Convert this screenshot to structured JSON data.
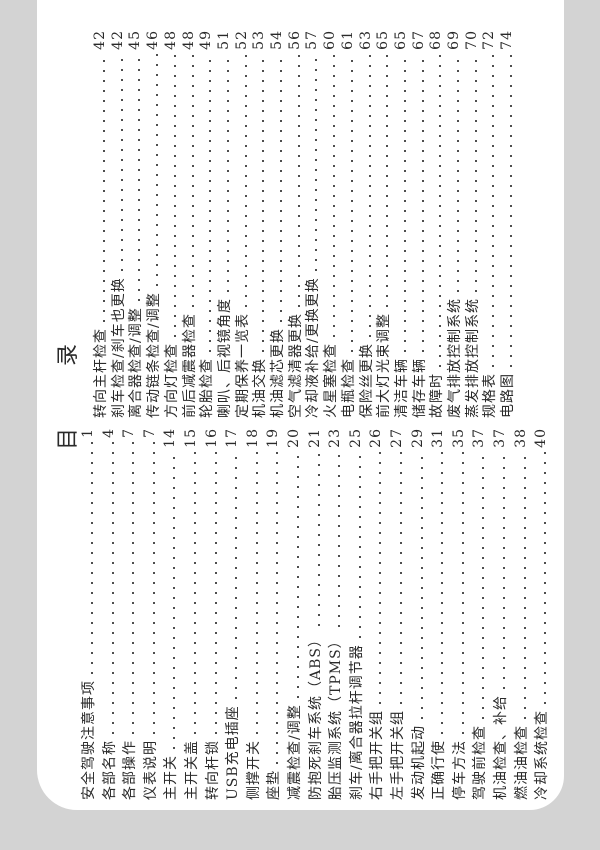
{
  "title": "目录",
  "left_column": [
    {
      "label": "安全驾驶注意事项",
      "page": "1"
    },
    {
      "label": "各部名称",
      "page": "4"
    },
    {
      "label": "各部操作",
      "page": "7"
    },
    {
      "label": "仪表说明",
      "page": "7"
    },
    {
      "label": "主开关",
      "page": "14"
    },
    {
      "label": "主开关盖",
      "page": "15"
    },
    {
      "label": "转向杆锁",
      "page": "16"
    },
    {
      "label": "USB充电插座",
      "page": "17"
    },
    {
      "label": "侧撑开关",
      "page": "18"
    },
    {
      "label": "座垫",
      "page": "19"
    },
    {
      "label": "减震检查/调整",
      "page": "20"
    },
    {
      "label": "防抱死刹车系统（ABS）",
      "page": "21"
    },
    {
      "label": "胎压监测系统（TPMS）",
      "page": "23"
    },
    {
      "label": "刹车/离合器拉杆调节器",
      "page": "25"
    },
    {
      "label": "右手把开关组",
      "page": "26"
    },
    {
      "label": "左手把开关组",
      "page": "27"
    },
    {
      "label": "发动机起动",
      "page": "29"
    },
    {
      "label": "正确行使",
      "page": "31"
    },
    {
      "label": "停车方法",
      "page": "35"
    },
    {
      "label": "驾驶前检查",
      "page": "37"
    },
    {
      "label": "机油检查、补给",
      "page": "37"
    },
    {
      "label": "燃油油检查",
      "page": "38"
    },
    {
      "label": "冷却系统检查",
      "page": "40"
    }
  ],
  "right_column": [
    {
      "label": "转向主杆检查",
      "page": "42"
    },
    {
      "label": "刹车检查/刹车也更换",
      "page": "42"
    },
    {
      "label": "离合器检查/调整",
      "page": "45"
    },
    {
      "label": "传动链条检查/调整",
      "page": "46"
    },
    {
      "label": "方向灯检查",
      "page": "48"
    },
    {
      "label": "前后减震器检查",
      "page": "48"
    },
    {
      "label": "轮胎检查",
      "page": "49"
    },
    {
      "label": "喇叭、后视镜角度",
      "page": "51"
    },
    {
      "label": "定期保养一览表",
      "page": "52"
    },
    {
      "label": "机油交换",
      "page": "53"
    },
    {
      "label": "机油滤芯更换",
      "page": "54"
    },
    {
      "label": "空气滤清器更换",
      "page": "56"
    },
    {
      "label": "冷却液补给/更换更换",
      "page": "57"
    },
    {
      "label": "火星塞检查",
      "page": "60"
    },
    {
      "label": "电瓶检查",
      "page": "61"
    },
    {
      "label": "保险丝更换",
      "page": "63"
    },
    {
      "label": "前大灯光束调整",
      "page": "65"
    },
    {
      "label": "清洁车辆",
      "page": "65"
    },
    {
      "label": "储存车辆",
      "page": "67"
    },
    {
      "label": "故障时",
      "page": "68"
    },
    {
      "label": "废气排放控制系统",
      "page": "69"
    },
    {
      "label": "蒸发排放控制系统",
      "page": "70"
    },
    {
      "label": "规格表",
      "page": "72"
    },
    {
      "label": "电路图",
      "page": "74"
    }
  ]
}
